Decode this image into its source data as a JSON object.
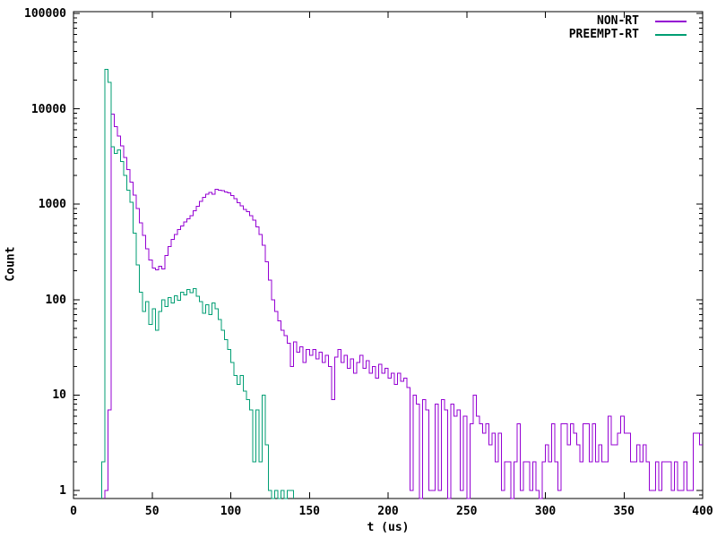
{
  "chart_data": {
    "type": "line",
    "style": "histogram-steps",
    "title": "",
    "xlabel": "t (us)",
    "ylabel": "Count",
    "x_range": [
      0,
      400
    ],
    "y_range": [
      1,
      100000
    ],
    "y_scale": "log",
    "grid": false,
    "legend_position": "top-right-inside",
    "x_ticks": [
      0,
      50,
      100,
      150,
      200,
      250,
      300,
      350,
      400
    ],
    "y_ticks": [
      "1",
      "10",
      "100",
      "1000",
      "10000",
      "100000"
    ],
    "axis_color": "#000000",
    "background_color": "#ffffff",
    "series": [
      {
        "name": "NON-RT",
        "color": "#9400D3",
        "bin_start": 20,
        "bin_width": 2,
        "counts": [
          1,
          7,
          8800,
          6500,
          5200,
          4100,
          3100,
          2300,
          1700,
          1250,
          900,
          640,
          470,
          340,
          260,
          215,
          205,
          225,
          210,
          290,
          360,
          430,
          480,
          540,
          590,
          650,
          700,
          760,
          850,
          950,
          1070,
          1180,
          1280,
          1330,
          1270,
          1430,
          1400,
          1390,
          1340,
          1310,
          1230,
          1140,
          1040,
          960,
          880,
          840,
          760,
          680,
          580,
          480,
          370,
          250,
          160,
          100,
          75,
          60,
          48,
          42,
          35,
          20,
          36,
          28,
          32,
          22,
          30,
          26,
          30,
          24,
          28,
          22,
          26,
          20,
          9,
          25,
          30,
          22,
          26,
          19,
          24,
          17,
          22,
          26,
          19,
          23,
          17,
          20,
          15,
          21,
          17,
          19,
          15,
          17,
          13,
          17,
          14,
          15,
          12,
          1,
          10,
          8,
          0,
          9,
          7,
          1,
          1,
          8,
          1,
          9,
          7,
          0,
          8,
          6,
          7,
          1,
          6,
          0,
          5,
          10,
          6,
          5,
          4,
          5,
          3,
          4,
          2,
          4,
          1,
          2,
          2,
          0,
          2,
          5,
          1,
          2,
          2,
          1,
          2,
          1,
          0,
          2,
          3,
          2,
          5,
          2,
          1,
          5,
          5,
          3,
          5,
          4,
          3,
          2,
          5,
          5,
          2,
          5,
          2,
          3,
          2,
          2,
          6,
          3,
          3,
          4,
          6,
          4,
          4,
          2,
          2,
          3,
          2,
          3,
          2,
          1,
          1,
          2,
          1,
          2,
          2,
          2,
          1,
          2,
          1,
          1,
          2,
          1,
          1,
          4,
          4,
          3
        ]
      },
      {
        "name": "PREEMPT-RT",
        "color": "#009E73",
        "bin_start": 18,
        "bin_width": 2,
        "counts": [
          2,
          26000,
          19000,
          4000,
          3400,
          3700,
          2800,
          2000,
          1400,
          1050,
          500,
          230,
          120,
          75,
          95,
          55,
          80,
          48,
          75,
          100,
          85,
          105,
          92,
          110,
          98,
          120,
          112,
          128,
          118,
          130,
          108,
          95,
          72,
          88,
          70,
          92,
          80,
          62,
          48,
          38,
          30,
          22,
          16,
          13,
          16,
          11,
          9,
          7,
          2,
          7,
          2,
          10,
          3,
          1,
          0,
          1,
          0,
          1,
          0,
          1,
          1
        ]
      }
    ]
  }
}
